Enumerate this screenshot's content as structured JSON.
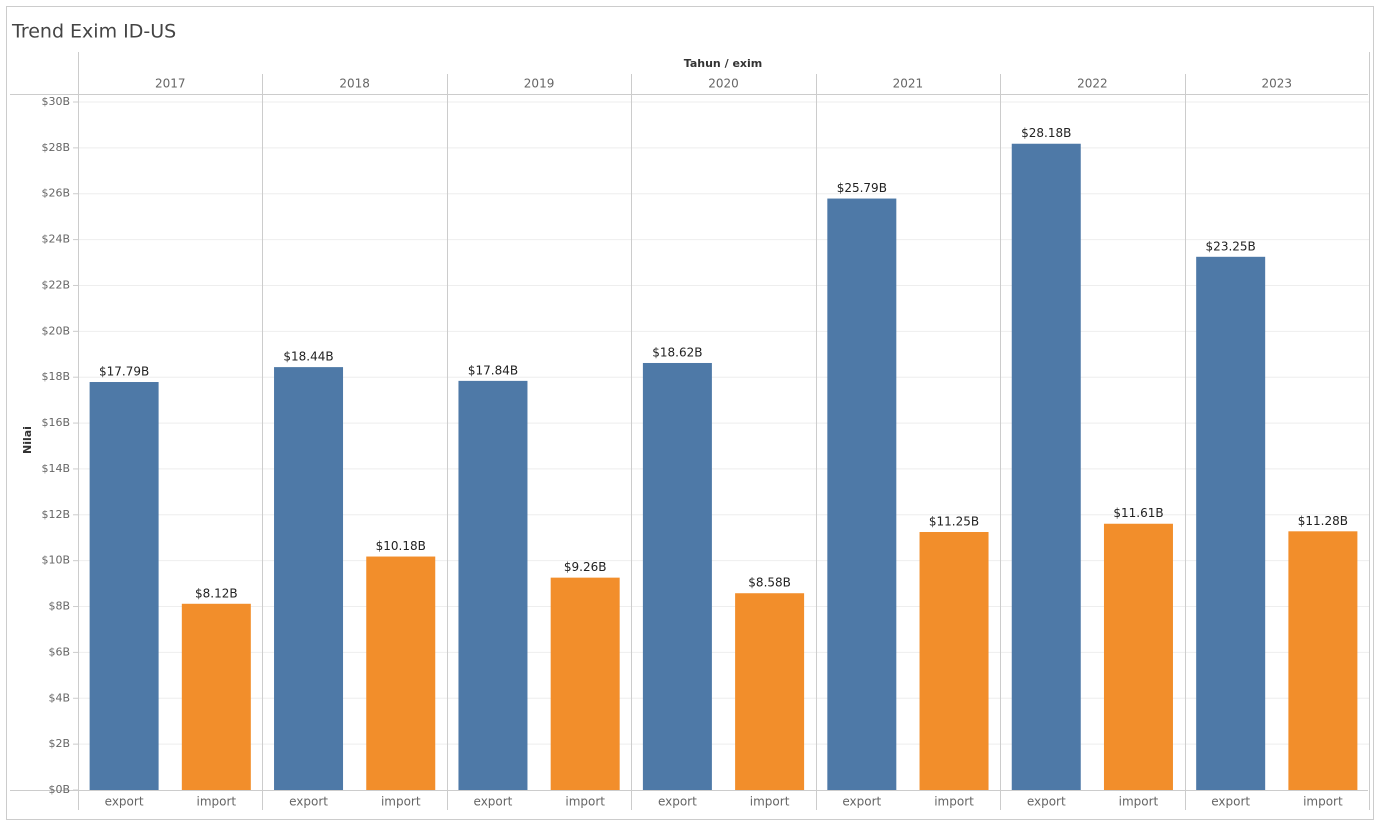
{
  "chart_data": {
    "type": "bar",
    "title": "Trend Exim ID-US",
    "x_label": "Tahun / exim",
    "y_label": "Nilai",
    "categories": [
      "2017",
      "2018",
      "2019",
      "2020",
      "2021",
      "2022",
      "2023"
    ],
    "series": [
      {
        "name": "export",
        "color": "#4e79a7",
        "values": [
          17.79,
          18.44,
          17.84,
          18.62,
          25.79,
          28.18,
          23.25
        ],
        "value_labels": [
          "$17.79B",
          "$18.44B",
          "$17.84B",
          "$18.62B",
          "$25.79B",
          "$28.18B",
          "$23.25B"
        ]
      },
      {
        "name": "import",
        "color": "#f28e2b",
        "values": [
          8.12,
          10.18,
          9.26,
          8.58,
          11.25,
          11.61,
          11.28
        ],
        "value_labels": [
          "$8.12B",
          "$10.18B",
          "$9.26B",
          "$8.58B",
          "$11.25B",
          "$11.61B",
          "$11.28B"
        ]
      }
    ],
    "ylim": [
      0,
      30
    ],
    "yticks": [
      {
        "value": 0,
        "label": "$0B"
      },
      {
        "value": 2,
        "label": "$2B"
      },
      {
        "value": 4,
        "label": "$4B"
      },
      {
        "value": 6,
        "label": "$6B"
      },
      {
        "value": 8,
        "label": "$8B"
      },
      {
        "value": 10,
        "label": "$10B"
      },
      {
        "value": 12,
        "label": "$12B"
      },
      {
        "value": 14,
        "label": "$14B"
      },
      {
        "value": 16,
        "label": "$16B"
      },
      {
        "value": 18,
        "label": "$18B"
      },
      {
        "value": 20,
        "label": "$20B"
      },
      {
        "value": 22,
        "label": "$22B"
      },
      {
        "value": 24,
        "label": "$24B"
      },
      {
        "value": 26,
        "label": "$26B"
      },
      {
        "value": 28,
        "label": "$28B"
      },
      {
        "value": 30,
        "label": "$30B"
      }
    ],
    "grid": true
  }
}
